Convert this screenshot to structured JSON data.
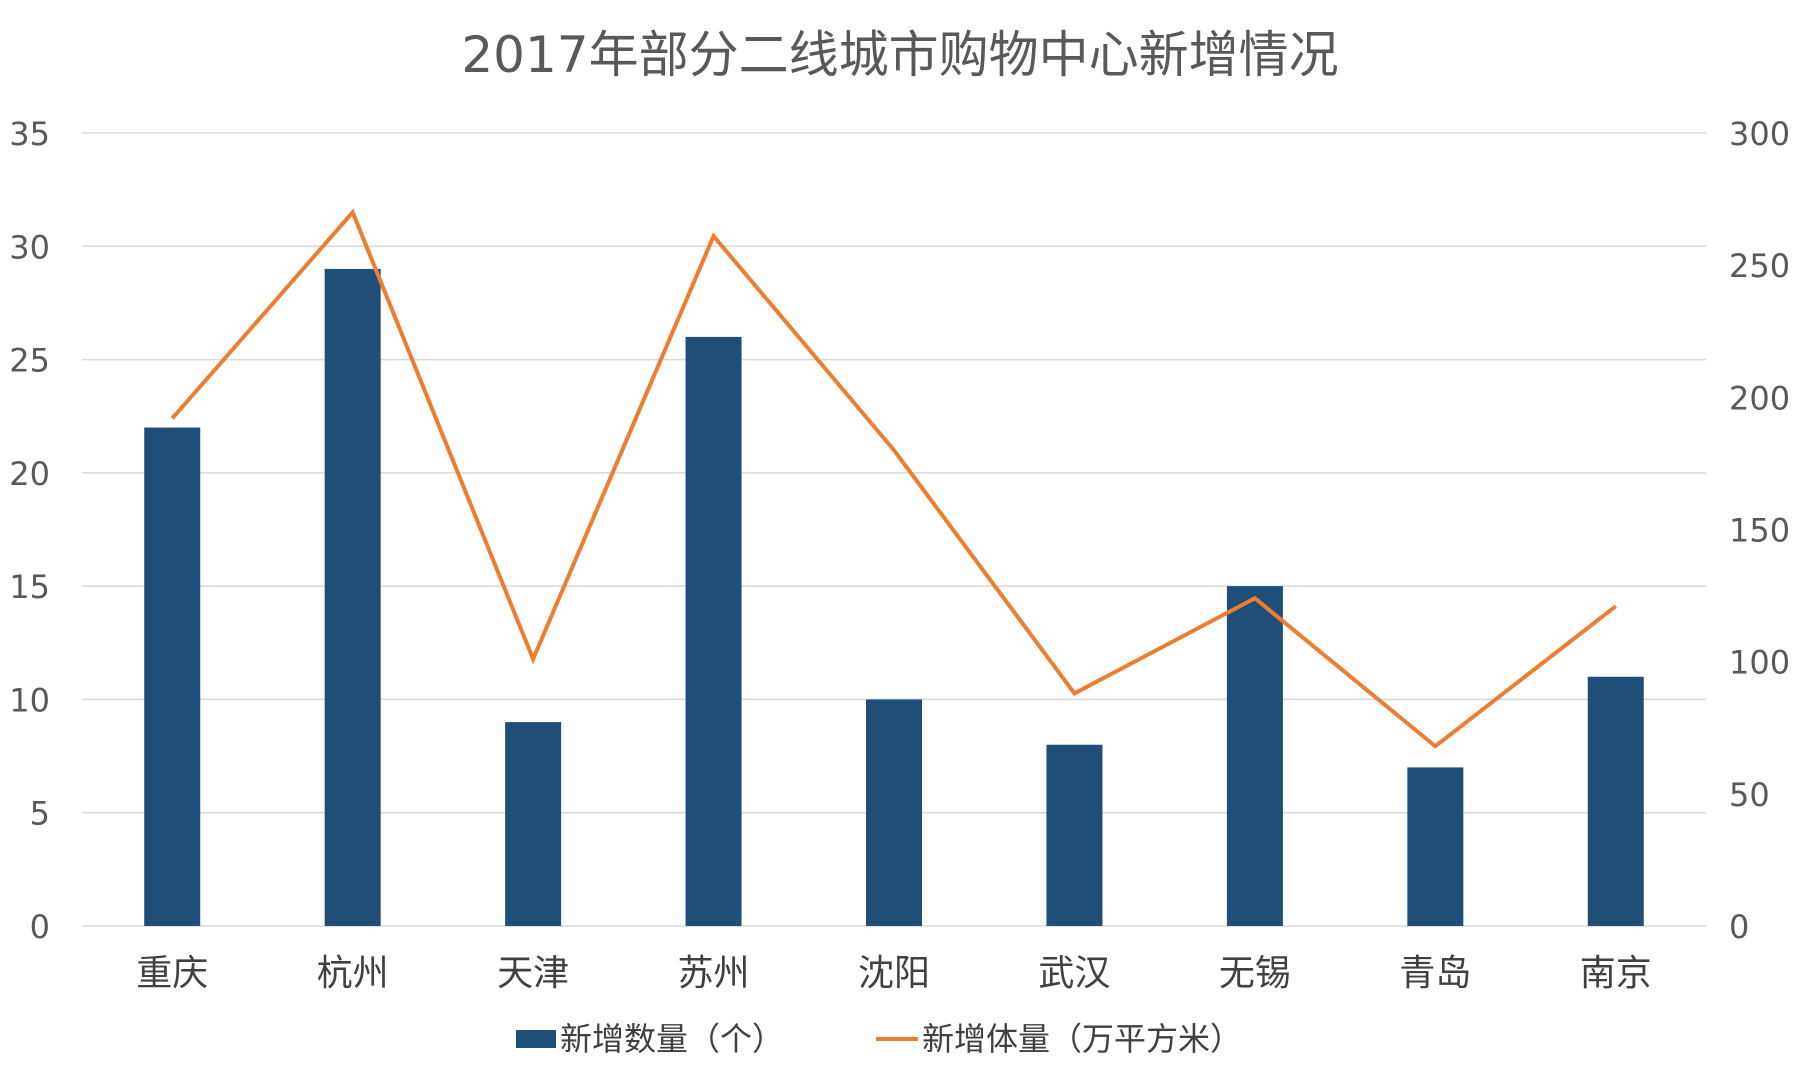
{
  "chart_data": {
    "type": "bar",
    "title": "2017年部分二线城市购物中心新增情况",
    "categories": [
      "重庆",
      "杭州",
      "天津",
      "苏州",
      "沈阳",
      "武汉",
      "无锡",
      "青岛",
      "南京"
    ],
    "series": [
      {
        "name": "新增数量（个）",
        "type": "bar",
        "axis": "left",
        "color": "#1F4E79",
        "values": [
          22,
          29,
          9,
          26,
          10,
          8,
          15,
          7,
          11
        ]
      },
      {
        "name": "新增体量（万平方米）",
        "type": "line",
        "axis": "right",
        "color": "#ED7D31",
        "values": [
          192,
          270,
          101,
          261,
          180,
          88,
          124,
          68,
          121
        ]
      }
    ],
    "y_left": {
      "min": 0,
      "max": 35,
      "ticks": [
        0,
        5,
        10,
        15,
        20,
        25,
        30,
        35
      ]
    },
    "y_right": {
      "min": 0,
      "max": 300,
      "ticks": [
        0,
        50,
        100,
        150,
        200,
        250,
        300
      ]
    },
    "grid": true,
    "legend_position": "bottom",
    "colors": {
      "grid": "#d9d9d9",
      "axis_text": "#595959",
      "title": "#595959",
      "category_text": "#404040"
    }
  }
}
